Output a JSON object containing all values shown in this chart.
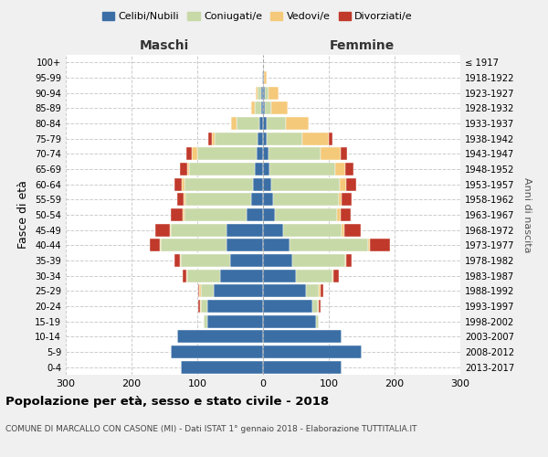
{
  "age_groups": [
    "0-4",
    "5-9",
    "10-14",
    "15-19",
    "20-24",
    "25-29",
    "30-34",
    "35-39",
    "40-44",
    "45-49",
    "50-54",
    "55-59",
    "60-64",
    "65-69",
    "70-74",
    "75-79",
    "80-84",
    "85-89",
    "90-94",
    "95-99",
    "100+"
  ],
  "birth_years": [
    "2013-2017",
    "2008-2012",
    "2003-2007",
    "1998-2002",
    "1993-1997",
    "1988-1992",
    "1983-1987",
    "1978-1982",
    "1973-1977",
    "1968-1972",
    "1963-1967",
    "1958-1962",
    "1953-1957",
    "1948-1952",
    "1943-1947",
    "1938-1942",
    "1933-1937",
    "1928-1932",
    "1923-1927",
    "1918-1922",
    "≤ 1917"
  ],
  "males": {
    "celibe": [
      125,
      140,
      130,
      85,
      85,
      75,
      65,
      50,
      55,
      55,
      25,
      18,
      15,
      12,
      10,
      8,
      5,
      3,
      3,
      2,
      0
    ],
    "coniugato": [
      0,
      0,
      0,
      5,
      10,
      20,
      50,
      75,
      100,
      85,
      95,
      100,
      105,
      100,
      90,
      65,
      35,
      10,
      5,
      0,
      0
    ],
    "vedovo": [
      0,
      0,
      0,
      0,
      1,
      2,
      2,
      2,
      2,
      2,
      2,
      3,
      3,
      3,
      8,
      5,
      8,
      5,
      3,
      0,
      0
    ],
    "divorziato": [
      0,
      0,
      0,
      0,
      2,
      2,
      5,
      8,
      15,
      22,
      18,
      10,
      12,
      12,
      8,
      5,
      0,
      0,
      0,
      0,
      0
    ]
  },
  "females": {
    "nubile": [
      120,
      150,
      120,
      80,
      75,
      65,
      50,
      45,
      40,
      30,
      18,
      15,
      12,
      10,
      8,
      5,
      5,
      3,
      3,
      2,
      0
    ],
    "coniugata": [
      0,
      0,
      0,
      5,
      8,
      20,
      55,
      80,
      120,
      90,
      95,
      100,
      105,
      100,
      80,
      55,
      30,
      10,
      5,
      0,
      0
    ],
    "vedova": [
      0,
      0,
      0,
      0,
      2,
      2,
      2,
      2,
      3,
      3,
      5,
      5,
      10,
      15,
      30,
      40,
      35,
      25,
      15,
      3,
      0
    ],
    "divorziata": [
      0,
      0,
      0,
      0,
      3,
      5,
      8,
      8,
      30,
      25,
      15,
      15,
      15,
      12,
      10,
      5,
      0,
      0,
      0,
      0,
      0
    ]
  },
  "colors": {
    "celibe": "#3a6ea5",
    "coniugato": "#c8d9a8",
    "vedovo": "#f5c97a",
    "divorziato": "#c0392b"
  },
  "title": "Popolazione per età, sesso e stato civile - 2018",
  "subtitle": "COMUNE DI MARCALLO CON CASONE (MI) - Dati ISTAT 1° gennaio 2018 - Elaborazione TUTTITALIA.IT",
  "xlabel_maschi": "Maschi",
  "xlabel_femmine": "Femmine",
  "ylabel_left": "Fasce di età",
  "ylabel_right": "Anni di nascita",
  "xlim": 300,
  "bg_color": "#f0f0f0",
  "plot_bg": "#ffffff"
}
